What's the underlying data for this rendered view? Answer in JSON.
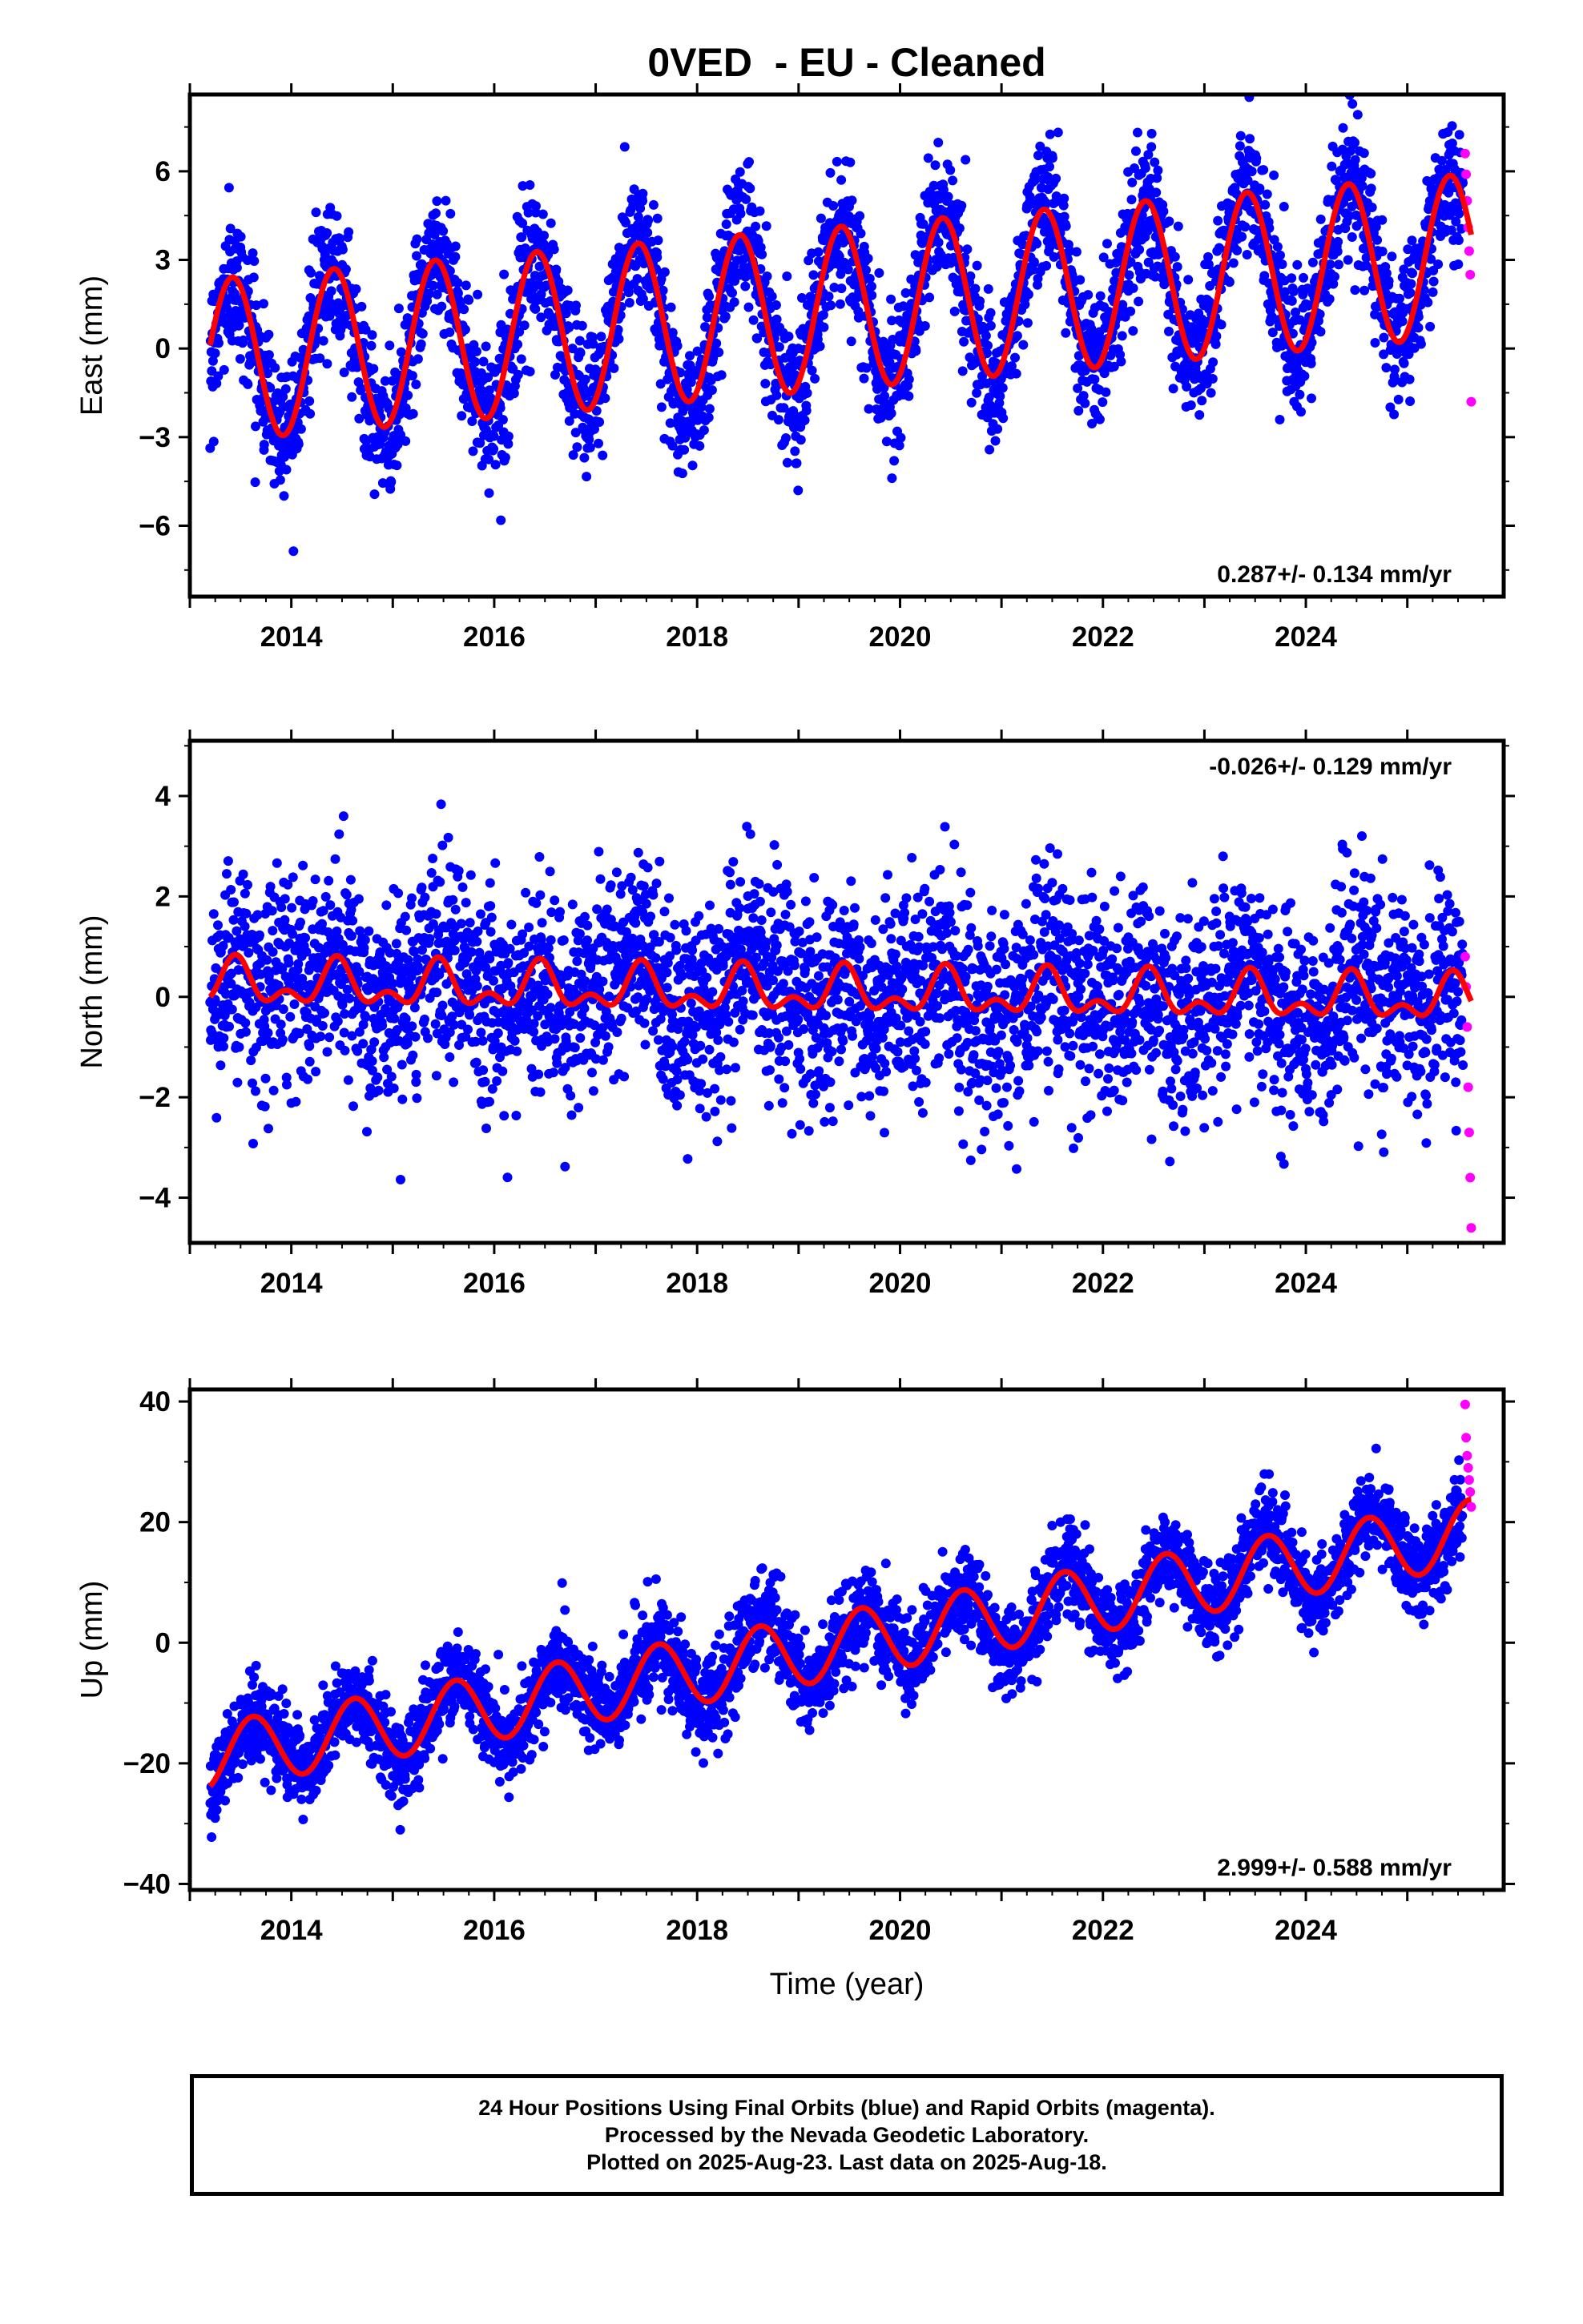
{
  "figure_title": "0VED  - EU - Cleaned",
  "xlabel": "Time (year)",
  "colors": {
    "final": "#0000ff",
    "rapid": "#ff00ff",
    "model": "#ff0000",
    "axis": "#000000"
  },
  "footer": {
    "line1": "24 Hour Positions Using Final Orbits (blue) and Rapid Orbits (magenta).",
    "line2": "Processed by the Nevada Geodetic Laboratory.",
    "line3": "Plotted on 2025-Aug-23. Last data on 2025-Aug-18."
  },
  "chart_data": [
    {
      "type": "scatter",
      "component": "east",
      "ylabel": "East (mm)",
      "rate_label": "0.287+/- 0.134 mm/yr",
      "rate_position": "bottom-right",
      "xlim": [
        2013.0,
        2025.95
      ],
      "ylim": [
        -8.4,
        8.6
      ],
      "xticks": [
        2014,
        2016,
        2018,
        2020,
        2022,
        2024
      ],
      "xtick_labels": [
        "2014",
        "2016",
        "2018",
        "2020",
        "2022",
        "2024"
      ],
      "yticks": [
        -6,
        -3,
        0,
        3,
        6
      ],
      "ytick_labels": [
        "−6",
        "−3",
        "0",
        "3",
        "6"
      ],
      "data_span": [
        2013.2,
        2025.63
      ],
      "model": {
        "offset": -0.4,
        "rate": 0.287,
        "amp_annual": 2.75,
        "amp_semiannual": 0.0,
        "phase_peak": 0.42,
        "ref_year": 2013.2
      },
      "scatter_sigma": 1.15,
      "rapid_points": [
        [
          2025.57,
          6.6
        ],
        [
          2025.58,
          5.9
        ],
        [
          2025.59,
          5.0
        ],
        [
          2025.6,
          4.1
        ],
        [
          2025.61,
          3.3
        ],
        [
          2025.62,
          2.5
        ],
        [
          2025.63,
          -1.8
        ]
      ]
    },
    {
      "type": "scatter",
      "component": "north",
      "ylabel": "North (mm)",
      "rate_label": "-0.026+/- 0.129 mm/yr",
      "rate_position": "top-right",
      "xlim": [
        2013.0,
        2025.95
      ],
      "ylim": [
        -4.9,
        5.1
      ],
      "xticks": [
        2014,
        2016,
        2018,
        2020,
        2022,
        2024
      ],
      "xtick_labels": [
        "2014",
        "2016",
        "2018",
        "2020",
        "2022",
        "2024"
      ],
      "yticks": [
        -4,
        -2,
        0,
        2,
        4
      ],
      "ytick_labels": [
        "−4",
        "−2",
        "0",
        "2",
        "4"
      ],
      "data_span": [
        2013.2,
        2025.63
      ],
      "model": {
        "offset": 0.25,
        "rate": -0.026,
        "amp_annual": 0.35,
        "amp_semiannual": 0.25,
        "phase_peak": 0.45,
        "ref_year": 2013.2
      },
      "scatter_sigma": 1.0,
      "rapid_points": [
        [
          2025.57,
          0.8
        ],
        [
          2025.58,
          0.2
        ],
        [
          2025.59,
          -0.6
        ],
        [
          2025.6,
          -1.8
        ],
        [
          2025.61,
          -2.7
        ],
        [
          2025.62,
          -3.6
        ],
        [
          2025.63,
          -4.6
        ]
      ]
    },
    {
      "type": "scatter",
      "component": "up",
      "ylabel": "Up (mm)",
      "rate_label": "2.999+/- 0.588 mm/yr",
      "rate_position": "bottom-right",
      "xlim": [
        2013.0,
        2025.95
      ],
      "ylim": [
        -41,
        42
      ],
      "xticks": [
        2014,
        2016,
        2018,
        2020,
        2022,
        2024
      ],
      "xtick_labels": [
        "2014",
        "2016",
        "2018",
        "2020",
        "2022",
        "2024"
      ],
      "yticks": [
        -40,
        -20,
        0,
        20,
        40
      ],
      "ytick_labels": [
        "−40",
        "−20",
        "0",
        "20",
        "40"
      ],
      "data_span": [
        2013.2,
        2025.63
      ],
      "model": {
        "offset": -19.0,
        "rate": 2.999,
        "amp_annual": 5.5,
        "amp_semiannual": 0.0,
        "phase_peak": 0.62,
        "ref_year": 2013.2
      },
      "scatter_sigma": 3.6,
      "rapid_points": [
        [
          2025.57,
          39.5
        ],
        [
          2025.58,
          34.0
        ],
        [
          2025.59,
          31.0
        ],
        [
          2025.6,
          29.0
        ],
        [
          2025.61,
          27.0
        ],
        [
          2025.62,
          25.0
        ],
        [
          2025.63,
          22.5
        ]
      ]
    }
  ]
}
